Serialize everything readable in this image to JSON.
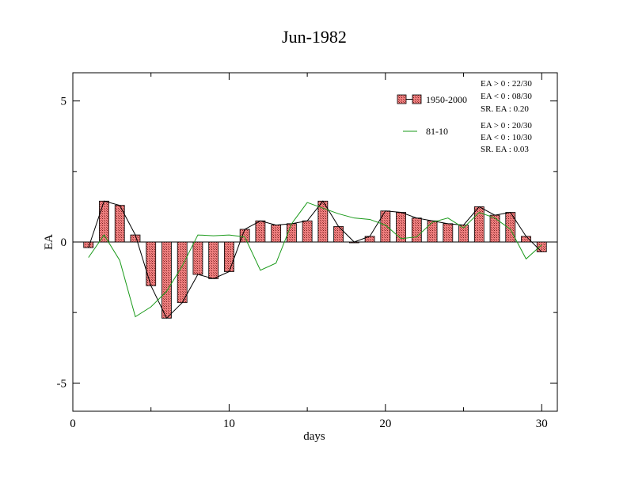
{
  "chart_data": {
    "type": "bar",
    "title": "Jun-1982",
    "xlabel": "days",
    "ylabel": "EA",
    "xlim": [
      0,
      31
    ],
    "ylim": [
      -6,
      6
    ],
    "xticks": [
      0,
      10,
      20,
      30
    ],
    "xtick_labels": [
      "0",
      "10",
      "20",
      "30"
    ],
    "yticks": [
      -5,
      0,
      5
    ],
    "ytick_labels": [
      "-5",
      "0",
      "5"
    ],
    "grid": false,
    "legend_position": "top-right",
    "bar_color": "#f08080",
    "line_color_black": "#000000",
    "line_color_green": "#1a9a1a",
    "series": [
      {
        "name": "1950-2000",
        "style": "bars-with-black-line",
        "x": [
          1,
          2,
          3,
          4,
          5,
          6,
          7,
          8,
          9,
          10,
          11,
          12,
          13,
          14,
          15,
          16,
          17,
          18,
          19,
          20,
          21,
          22,
          23,
          24,
          25,
          26,
          27,
          28,
          29,
          30
        ],
        "values": [
          -0.2,
          1.45,
          1.3,
          0.25,
          -1.55,
          -2.7,
          -2.15,
          -1.15,
          -1.3,
          -1.05,
          0.45,
          0.75,
          0.6,
          0.65,
          0.75,
          1.45,
          0.55,
          0.0,
          0.2,
          1.1,
          1.05,
          0.85,
          0.75,
          0.65,
          0.6,
          1.25,
          0.95,
          1.05,
          0.2,
          -0.35
        ]
      },
      {
        "name": "81-10",
        "style": "green-line",
        "x": [
          1,
          2,
          3,
          4,
          5,
          6,
          7,
          8,
          9,
          10,
          11,
          12,
          13,
          14,
          15,
          16,
          17,
          18,
          19,
          20,
          21,
          22,
          23,
          24,
          25,
          26,
          27,
          28,
          29,
          30
        ],
        "values": [
          -0.55,
          0.25,
          -0.65,
          -2.65,
          -2.3,
          -1.75,
          -0.85,
          0.25,
          0.22,
          0.25,
          0.18,
          -1.0,
          -0.75,
          0.65,
          1.4,
          1.2,
          1.0,
          0.85,
          0.8,
          0.6,
          0.12,
          0.18,
          0.7,
          0.85,
          0.5,
          1.05,
          0.85,
          0.45,
          -0.6,
          -0.1
        ]
      }
    ],
    "stats": [
      {
        "series": "1950-2000",
        "lines": [
          "EA > 0 : 22/30",
          "EA < 0 : 08/30",
          "SR. EA :  0.20"
        ]
      },
      {
        "series": "81-10",
        "lines": [
          "EA > 0 : 20/30",
          "EA < 0 : 10/30",
          "SR. EA :  0.03"
        ]
      }
    ]
  }
}
